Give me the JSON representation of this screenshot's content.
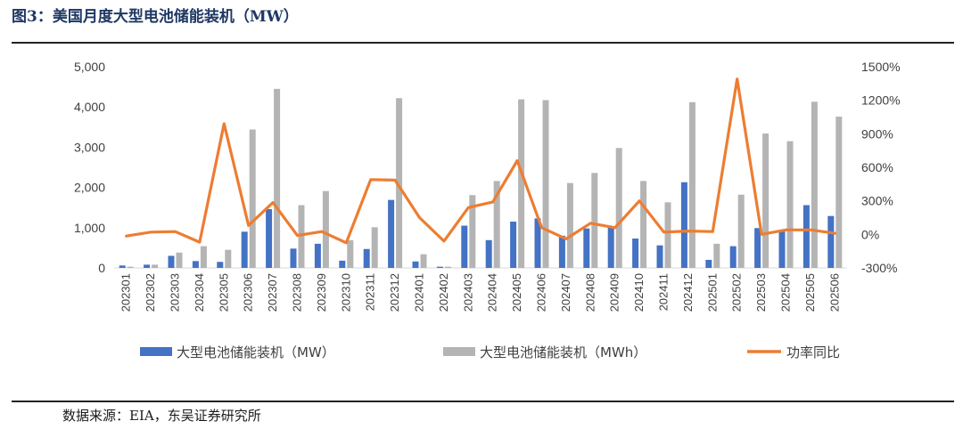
{
  "figure": {
    "title": "图3：美国月度大型电池储能装机（MW）",
    "source": "数据来源：EIA，东吴证券研究所"
  },
  "colors": {
    "mw": "#4472c4",
    "mwh": "#b4b4b4",
    "yoy": "#ed7d31",
    "axis": "#d9d9d9"
  },
  "chart_data": {
    "type": "bar",
    "title": "图3：美国月度大型电池储能装机（MW）",
    "categories": [
      "202301",
      "202302",
      "202303",
      "202304",
      "202305",
      "202306",
      "202307",
      "202308",
      "202309",
      "202310",
      "202311",
      "202312",
      "202401",
      "202402",
      "202403",
      "202404",
      "202405",
      "202406",
      "202407",
      "202408",
      "202409",
      "202410",
      "202411",
      "202412",
      "202501",
      "202502",
      "202503",
      "202504",
      "202505",
      "202506"
    ],
    "series": [
      {
        "name": "大型电池储能装机（MW）",
        "axis": "left",
        "kind": "bar",
        "values": [
          60,
          80,
          300,
          170,
          150,
          900,
          1460,
          480,
          600,
          180,
          470,
          1690,
          160,
          30,
          1050,
          690,
          1150,
          1230,
          800,
          980,
          1000,
          730,
          560,
          2130,
          200,
          540,
          990,
          950,
          1560,
          1290
        ]
      },
      {
        "name": "大型电池储能装机（MWh）",
        "axis": "left",
        "kind": "bar",
        "values": [
          30,
          80,
          380,
          540,
          450,
          3440,
          4450,
          1560,
          1910,
          690,
          1010,
          4220,
          340,
          30,
          1810,
          2160,
          4190,
          4170,
          2110,
          2360,
          2980,
          2160,
          1630,
          4120,
          600,
          1820,
          3340,
          3150,
          4130,
          3760
        ]
      },
      {
        "name": "功率同比",
        "axis": "right",
        "kind": "line",
        "values": [
          -15,
          20,
          25,
          -70,
          990,
          80,
          285,
          -10,
          25,
          -75,
          490,
          485,
          150,
          -60,
          240,
          290,
          660,
          60,
          -40,
          100,
          60,
          300,
          20,
          30,
          25,
          1390,
          0,
          40,
          40,
          10
        ]
      }
    ],
    "left_axis": {
      "min": 0,
      "max": 5000,
      "step": 1000,
      "labels": [
        "0",
        "1,000",
        "2,000",
        "3,000",
        "4,000",
        "5,000"
      ]
    },
    "right_axis": {
      "min": -300,
      "max": 1500,
      "step": 300,
      "labels": [
        "-300%",
        "0%",
        "300%",
        "600%",
        "900%",
        "1200%",
        "1500%"
      ]
    },
    "legend": {
      "position": "bottom",
      "items": [
        "大型电池储能装机（MW）",
        "大型电池储能装机（MWh）",
        "功率同比"
      ]
    }
  }
}
